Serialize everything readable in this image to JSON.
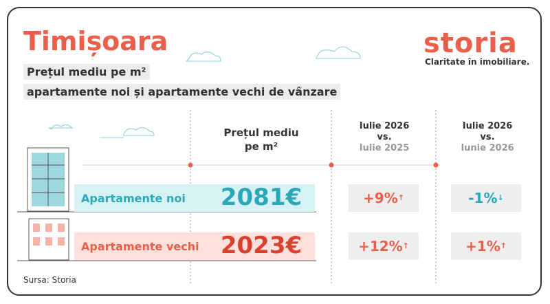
{
  "header": {
    "title": "Timișoara",
    "subtitle_lines": [
      "Prețul mediu pe m²",
      "apartamente noi și apartamente vechi de vânzare"
    ]
  },
  "brand": {
    "name": "storia",
    "tagline": "Claritate în imobiliare."
  },
  "table": {
    "columns": [
      {
        "lines": [
          "Prețul mediu",
          "pe m²"
        ]
      },
      {
        "lines": [
          "Iulie 2026",
          "vs.",
          "Iulie 2025"
        ]
      },
      {
        "lines": [
          "Iulie 2026",
          "vs.",
          "Iunie 2026"
        ]
      }
    ],
    "rows": [
      {
        "label": "Apartamente noi",
        "price": "2081€",
        "change_year": "+9%",
        "change_month": "-1%"
      },
      {
        "label": "Apartamente vechi",
        "price": "2023€",
        "change_year": "+12%",
        "change_month": "+1%"
      }
    ]
  },
  "source": "Sursa: Storia"
}
